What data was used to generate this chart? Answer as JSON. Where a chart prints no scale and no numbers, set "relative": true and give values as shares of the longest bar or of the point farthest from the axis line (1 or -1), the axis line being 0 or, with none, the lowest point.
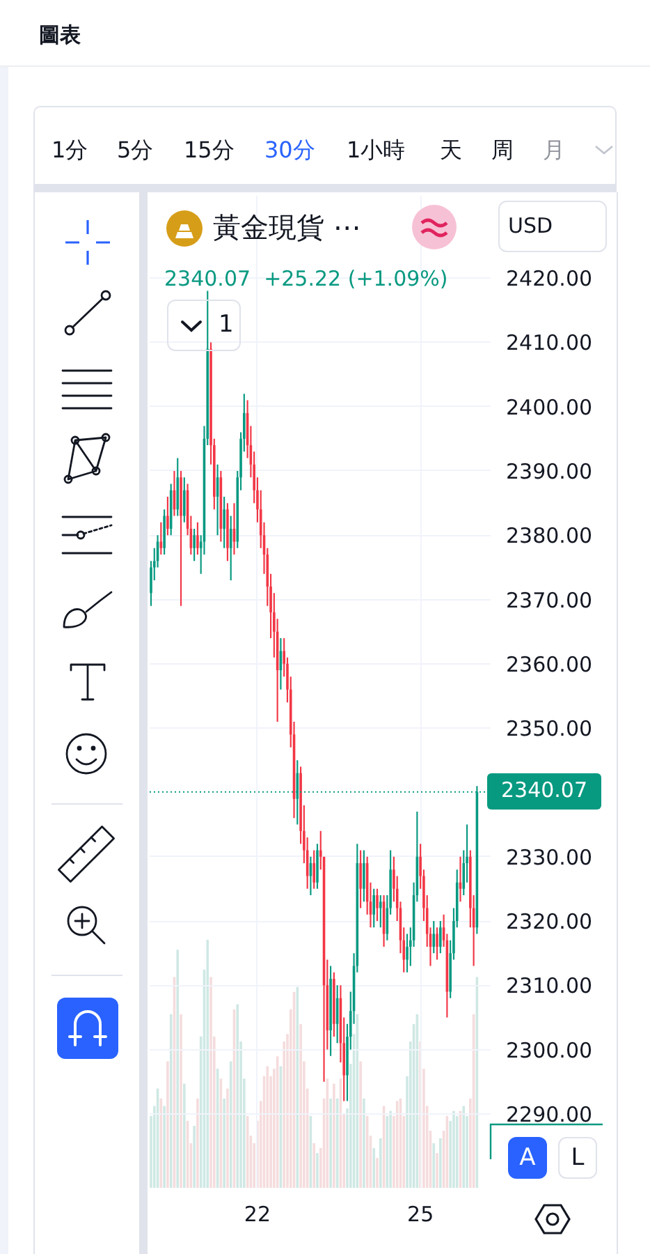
{
  "chart_data": [
    {
      "type": "candlestick",
      "title": "黃金現貨 ⋯",
      "annotations": [
        "圖表",
        "1分",
        "5分",
        "15分",
        "30分",
        "1小時",
        "天",
        "周",
        "月",
        "2340.07  +25.22 (+1.09%)",
        "1",
        "USD",
        "A",
        "L"
      ],
      "categories": [
        null,
        null,
        null,
        null,
        null,
        null,
        null,
        null,
        null,
        null,
        null,
        null,
        null,
        null,
        null,
        null,
        null,
        null,
        null,
        null,
        null,
        null,
        null,
        null,
        null,
        null,
        null,
        null,
        null,
        null,
        null,
        null,
        "22",
        null,
        null,
        null,
        null,
        null,
        null,
        null,
        null,
        null,
        null,
        null,
        null,
        null,
        null,
        null,
        null,
        null,
        null,
        null,
        null,
        null,
        null,
        null,
        null,
        null,
        null,
        null,
        null,
        null,
        null,
        null,
        null,
        null,
        null,
        null,
        null,
        null,
        null,
        null,
        null,
        null,
        null,
        null,
        null,
        null,
        null,
        null,
        null,
        "25",
        null,
        null,
        null,
        null,
        null,
        null,
        null,
        null,
        null,
        null,
        null,
        null,
        null,
        null,
        null,
        null,
        null
      ],
      "ohlc": [
        [
          2371,
          2376,
          2369,
          2375
        ],
        [
          2375,
          2378,
          2373,
          2376
        ],
        [
          2376,
          2380,
          2375,
          2379
        ],
        [
          2379,
          2382,
          2377,
          2378
        ],
        [
          2378,
          2384,
          2377,
          2383
        ],
        [
          2383,
          2386,
          2380,
          2381
        ],
        [
          2381,
          2388,
          2380,
          2387
        ],
        [
          2387,
          2390,
          2383,
          2384
        ],
        [
          2384,
          2392,
          2383,
          2389
        ],
        [
          2389,
          2390,
          2369,
          2383
        ],
        [
          2383,
          2389,
          2382,
          2387
        ],
        [
          2387,
          2388,
          2380,
          2381
        ],
        [
          2381,
          2383,
          2377,
          2378
        ],
        [
          2378,
          2381,
          2376,
          2380
        ],
        [
          2380,
          2382,
          2377,
          2378
        ],
        [
          2378,
          2380,
          2374,
          2379
        ],
        [
          2379,
          2397,
          2377,
          2395
        ],
        [
          2395,
          2418,
          2394,
          2409
        ],
        [
          2409,
          2410,
          2391,
          2394
        ],
        [
          2394,
          2395,
          2384,
          2386
        ],
        [
          2386,
          2391,
          2380,
          2389
        ],
        [
          2389,
          2390,
          2379,
          2381
        ],
        [
          2381,
          2386,
          2378,
          2384
        ],
        [
          2384,
          2385,
          2376,
          2378
        ],
        [
          2378,
          2383,
          2373,
          2381
        ],
        [
          2381,
          2385,
          2377,
          2379
        ],
        [
          2379,
          2390,
          2378,
          2389
        ],
        [
          2389,
          2396,
          2387,
          2395
        ],
        [
          2395,
          2402,
          2393,
          2399
        ],
        [
          2399,
          2401,
          2392,
          2394
        ],
        [
          2394,
          2397,
          2389,
          2391
        ],
        [
          2391,
          2393,
          2385,
          2387
        ],
        [
          2387,
          2389,
          2382,
          2384
        ],
        [
          2384,
          2387,
          2378,
          2380
        ],
        [
          2380,
          2382,
          2374,
          2377
        ],
        [
          2377,
          2378,
          2369,
          2372
        ],
        [
          2372,
          2374,
          2364,
          2368
        ],
        [
          2368,
          2371,
          2361,
          2365
        ],
        [
          2365,
          2367,
          2351,
          2359
        ],
        [
          2359,
          2364,
          2356,
          2362
        ],
        [
          2362,
          2364,
          2358,
          2360
        ],
        [
          2360,
          2361,
          2354,
          2356
        ],
        [
          2356,
          2358,
          2347,
          2349
        ],
        [
          2349,
          2351,
          2336,
          2339
        ],
        [
          2339,
          2345,
          2335,
          2343
        ],
        [
          2343,
          2344,
          2332,
          2334
        ],
        [
          2334,
          2338,
          2329,
          2331
        ],
        [
          2331,
          2333,
          2325,
          2327
        ],
        [
          2327,
          2330,
          2324,
          2329
        ],
        [
          2329,
          2331,
          2325,
          2326
        ],
        [
          2326,
          2332,
          2325,
          2331
        ],
        [
          2331,
          2334,
          2328,
          2330
        ],
        [
          2330,
          2330,
          2295,
          2310
        ],
        [
          2310,
          2314,
          2300,
          2303
        ],
        [
          2303,
          2313,
          2299,
          2311
        ],
        [
          2311,
          2312,
          2302,
          2304
        ],
        [
          2304,
          2310,
          2301,
          2308
        ],
        [
          2308,
          2310,
          2298,
          2301
        ],
        [
          2301,
          2305,
          2292,
          2296
        ],
        [
          2296,
          2304,
          2292,
          2302
        ],
        [
          2302,
          2309,
          2300,
          2306
        ],
        [
          2306,
          2315,
          2304,
          2313
        ],
        [
          2313,
          2332,
          2312,
          2329
        ],
        [
          2329,
          2331,
          2322,
          2325
        ],
        [
          2325,
          2331,
          2323,
          2329
        ],
        [
          2329,
          2330,
          2321,
          2323
        ],
        [
          2323,
          2326,
          2319,
          2321
        ],
        [
          2321,
          2325,
          2319,
          2324
        ],
        [
          2324,
          2325,
          2320,
          2322
        ],
        [
          2322,
          2324,
          2319,
          2323
        ],
        [
          2323,
          2324,
          2316,
          2318
        ],
        [
          2318,
          2324,
          2317,
          2322
        ],
        [
          2322,
          2331,
          2321,
          2328
        ],
        [
          2328,
          2330,
          2323,
          2325
        ],
        [
          2325,
          2327,
          2320,
          2322
        ],
        [
          2322,
          2323,
          2315,
          2317
        ],
        [
          2317,
          2319,
          2312,
          2314
        ],
        [
          2314,
          2318,
          2312,
          2316
        ],
        [
          2316,
          2319,
          2313,
          2317
        ],
        [
          2317,
          2326,
          2316,
          2324
        ],
        [
          2324,
          2337,
          2323,
          2330
        ],
        [
          2330,
          2332,
          2325,
          2327
        ],
        [
          2327,
          2328,
          2320,
          2322
        ],
        [
          2322,
          2324,
          2316,
          2318
        ],
        [
          2318,
          2319,
          2313,
          2316
        ],
        [
          2316,
          2320,
          2315,
          2318
        ],
        [
          2318,
          2319,
          2314,
          2316
        ],
        [
          2316,
          2320,
          2315,
          2319
        ],
        [
          2319,
          2321,
          2316,
          2317
        ],
        [
          2317,
          2318,
          2305,
          2309
        ],
        [
          2309,
          2317,
          2308,
          2315
        ],
        [
          2315,
          2322,
          2314,
          2320
        ],
        [
          2320,
          2328,
          2319,
          2326
        ],
        [
          2326,
          2330,
          2323,
          2325
        ],
        [
          2325,
          2331,
          2324,
          2329
        ],
        [
          2329,
          2335,
          2326,
          2330
        ],
        [
          2330,
          2331,
          2319,
          2322
        ],
        [
          2322,
          2324,
          2313,
          2319
        ],
        [
          2319,
          2341,
          2318,
          2340.07
        ]
      ],
      "colors": [
        "#089981",
        "#089981",
        "#089981",
        "#f23645",
        "#089981",
        "#f23645",
        "#089981",
        "#f23645",
        "#089981",
        "#f23645",
        "#089981",
        "#f23645",
        "#f23645",
        "#089981",
        "#f23645",
        "#089981",
        "#089981",
        "#089981",
        "#f23645",
        "#f23645",
        "#089981",
        "#f23645",
        "#089981",
        "#f23645",
        "#089981",
        "#f23645",
        "#089981",
        "#089981",
        "#089981",
        "#f23645",
        "#f23645",
        "#f23645",
        "#f23645",
        "#f23645",
        "#f23645",
        "#f23645",
        "#f23645",
        "#f23645",
        "#f23645",
        "#089981",
        "#f23645",
        "#f23645",
        "#f23645",
        "#f23645",
        "#089981",
        "#f23645",
        "#f23645",
        "#f23645",
        "#089981",
        "#f23645",
        "#089981",
        "#f23645",
        "#f23645",
        "#f23645",
        "#089981",
        "#f23645",
        "#089981",
        "#f23645",
        "#f23645",
        "#089981",
        "#089981",
        "#089981",
        "#089981",
        "#f23645",
        "#089981",
        "#f23645",
        "#f23645",
        "#089981",
        "#f23645",
        "#089981",
        "#f23645",
        "#089981",
        "#089981",
        "#f23645",
        "#f23645",
        "#f23645",
        "#f23645",
        "#089981",
        "#089981",
        "#089981",
        "#089981",
        "#f23645",
        "#f23645",
        "#f23645",
        "#f23645",
        "#089981",
        "#f23645",
        "#089981",
        "#f23645",
        "#f23645",
        "#089981",
        "#089981",
        "#089981",
        "#f23645",
        "#089981",
        "#089981",
        "#f23645",
        "#f23645",
        "#089981"
      ],
      "ylim": [
        2278.5,
        2432.8
      ],
      "yticks": [
        {
          "value": 2290,
          "label": "2290.00"
        },
        {
          "value": 2300,
          "label": "2300.00"
        },
        {
          "value": 2310,
          "label": "2310.00"
        },
        {
          "value": 2320,
          "label": "2320.00"
        },
        {
          "value": 2330,
          "label": "2330.00"
        },
        {
          "value": 2350,
          "label": "2350.00"
        },
        {
          "value": 2360,
          "label": "2360.00"
        },
        {
          "value": 2370,
          "label": "2370.00"
        },
        {
          "value": 2380,
          "label": "2380.00"
        },
        {
          "value": 2390,
          "label": "2390.00"
        },
        {
          "value": 2400,
          "label": "2400.00"
        },
        {
          "value": 2410,
          "label": "2410.00"
        },
        {
          "value": 2420,
          "label": "2420.00"
        }
      ],
      "ref_lines": [
        {
          "axis": "y",
          "value": 2340.07,
          "label": "2340.07",
          "color": "#089981",
          "line_style": "dotted"
        }
      ],
      "grid": true
    },
    {
      "type": "bar",
      "relative": true,
      "tick_labels": false,
      "categories": [
        null,
        null,
        null,
        null,
        null,
        null,
        null,
        null,
        null,
        null,
        null,
        null,
        null,
        null,
        null,
        null,
        null,
        null,
        null,
        null,
        null,
        null,
        null,
        null,
        null,
        null,
        null,
        null,
        null,
        null,
        null,
        null,
        "22",
        null,
        null,
        null,
        null,
        null,
        null,
        null,
        null,
        null,
        null,
        null,
        null,
        null,
        null,
        null,
        null,
        null,
        null,
        null,
        null,
        null,
        null,
        null,
        null,
        null,
        null,
        null,
        null,
        null,
        null,
        null,
        null,
        null,
        null,
        null,
        null,
        null,
        null,
        null,
        null,
        null,
        null,
        null,
        null,
        null,
        null,
        null,
        null,
        "25",
        null,
        null,
        null,
        null,
        null,
        null,
        null,
        null,
        null,
        null,
        null,
        null,
        null,
        null,
        null,
        null,
        null
      ],
      "values": [
        0.29,
        0.33,
        0.4,
        0.36,
        0.33,
        0.51,
        0.7,
        0.85,
        0.96,
        0.7,
        0.42,
        0.27,
        0.18,
        0.25,
        0.36,
        0.61,
        0.88,
        1,
        0.85,
        0.61,
        0.48,
        0.44,
        0.36,
        0.4,
        0.51,
        0.72,
        0.74,
        0.59,
        0.44,
        0.29,
        0.21,
        0.18,
        0.27,
        0.35,
        0.45,
        0.49,
        0.45,
        0.48,
        0.53,
        0.49,
        0.59,
        0.62,
        0.72,
        0.79,
        0.81,
        0.66,
        0.51,
        0.4,
        0.29,
        0.18,
        0.14,
        0.16,
        0.36,
        0.44,
        0.36,
        0.42,
        0.36,
        0.44,
        0.3,
        0.32,
        0.5,
        0.62,
        0.7,
        0.51,
        0.36,
        0.29,
        0.21,
        0.16,
        0.12,
        0.2,
        0.33,
        0.29,
        0.31,
        0.29,
        0.35,
        0.36,
        0.29,
        0.45,
        0.59,
        0.66,
        0.7,
        0.59,
        0.48,
        0.33,
        0.23,
        0.18,
        0.14,
        0.2,
        0.23,
        0.29,
        0.27,
        0.31,
        0.29,
        0.31,
        0.33,
        0.29,
        0.36,
        0.7,
        0.85
      ],
      "colors": [
        "#cfe8e4",
        "#cfe8e4",
        "#cfe8e4",
        "#f5dcdd",
        "#cfe8e4",
        "#f5dcdd",
        "#cfe8e4",
        "#f5dcdd",
        "#cfe8e4",
        "#f5dcdd",
        "#cfe8e4",
        "#f5dcdd",
        "#f5dcdd",
        "#cfe8e4",
        "#f5dcdd",
        "#cfe8e4",
        "#cfe8e4",
        "#cfe8e4",
        "#f5dcdd",
        "#f5dcdd",
        "#cfe8e4",
        "#f5dcdd",
        "#cfe8e4",
        "#f5dcdd",
        "#cfe8e4",
        "#f5dcdd",
        "#cfe8e4",
        "#cfe8e4",
        "#cfe8e4",
        "#f5dcdd",
        "#f5dcdd",
        "#f5dcdd",
        "#f5dcdd",
        "#f5dcdd",
        "#f5dcdd",
        "#f5dcdd",
        "#f5dcdd",
        "#f5dcdd",
        "#f5dcdd",
        "#cfe8e4",
        "#f5dcdd",
        "#f5dcdd",
        "#f5dcdd",
        "#f5dcdd",
        "#cfe8e4",
        "#f5dcdd",
        "#f5dcdd",
        "#f5dcdd",
        "#cfe8e4",
        "#f5dcdd",
        "#cfe8e4",
        "#f5dcdd",
        "#f5dcdd",
        "#f5dcdd",
        "#cfe8e4",
        "#f5dcdd",
        "#cfe8e4",
        "#f5dcdd",
        "#f5dcdd",
        "#cfe8e4",
        "#cfe8e4",
        "#cfe8e4",
        "#cfe8e4",
        "#f5dcdd",
        "#cfe8e4",
        "#f5dcdd",
        "#f5dcdd",
        "#cfe8e4",
        "#f5dcdd",
        "#cfe8e4",
        "#f5dcdd",
        "#cfe8e4",
        "#cfe8e4",
        "#f5dcdd",
        "#f5dcdd",
        "#f5dcdd",
        "#f5dcdd",
        "#cfe8e4",
        "#cfe8e4",
        "#cfe8e4",
        "#cfe8e4",
        "#f5dcdd",
        "#f5dcdd",
        "#f5dcdd",
        "#f5dcdd",
        "#cfe8e4",
        "#f5dcdd",
        "#cfe8e4",
        "#f5dcdd",
        "#f5dcdd",
        "#cfe8e4",
        "#cfe8e4",
        "#cfe8e4",
        "#f5dcdd",
        "#cfe8e4",
        "#cfe8e4",
        "#f5dcdd",
        "#f5dcdd",
        "#cfe8e4"
      ]
    }
  ]
}
